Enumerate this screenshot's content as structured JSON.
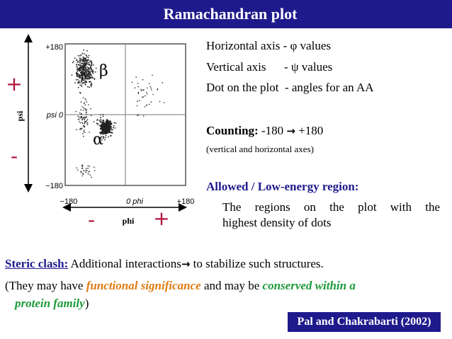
{
  "title": "Ramachandran plot",
  "plot": {
    "top_label": "+180",
    "mid_label": "psi 0",
    "bottom_label": "−180",
    "x_left_label": "−180",
    "x_mid_label": "0 phi",
    "x_right_label": "+180",
    "beta_label": "β",
    "alpha_label": "α",
    "psi_axis_label": "psi",
    "phi_axis_label": "phi",
    "plus_sign": "+",
    "minus_sign": "-"
  },
  "right_panel": {
    "line1": "Horizontal axis - φ values",
    "line2": "Vertical axis      - ψ values",
    "line3": "Dot on the plot  - angles for an AA",
    "counting_label": "Counting:",
    "counting_text": " -180 ",
    "counting_arrow": "→",
    "counting_end": " +180",
    "counting_note": "(vertical and horizontal axes)",
    "allowed_heading": "Allowed / Low-energy region:",
    "allowed_line1": "The regions on the plot with the",
    "allowed_line2": "highest density of dots"
  },
  "bottom": {
    "steric_label": "Steric clash:",
    "steric_text": " Additional interactions",
    "steric_arrow": "→",
    "steric_end": " to stabilize such structures.",
    "line2_start": "(They may have ",
    "functional": "functional significance",
    "line2_mid": " and may be ",
    "conserved": "conserved within a",
    "line3_conserved": "protein family",
    "line3_end": ")"
  },
  "citation": "Pal and Chakrabarti (2002)",
  "colors": {
    "title_bg": "#1f1a8c",
    "orange": "#e07b10",
    "green": "#1e9a3a"
  }
}
